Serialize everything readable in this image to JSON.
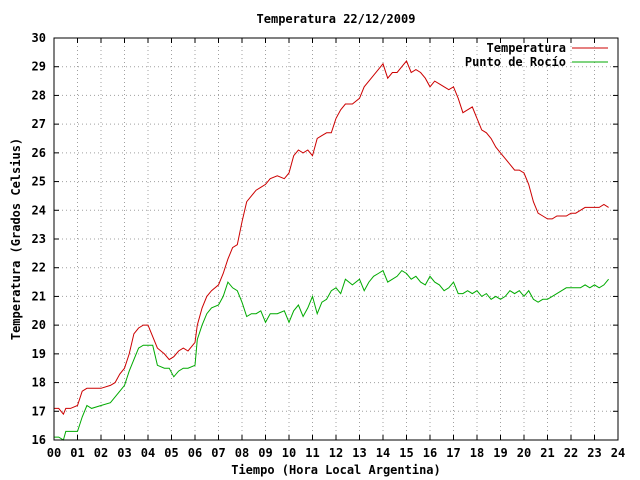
{
  "chart_data": {
    "type": "line",
    "title": "Temperatura 22/12/2009",
    "xlabel": "Tiempo (Hora Local Argentina)",
    "ylabel": "Temperatura (Grados Celsius)",
    "xlim": [
      0,
      24
    ],
    "ylim": [
      16,
      30
    ],
    "x_tick_values": [
      0,
      1,
      2,
      3,
      4,
      5,
      6,
      7,
      8,
      9,
      10,
      11,
      12,
      13,
      14,
      15,
      16,
      17,
      18,
      19,
      20,
      21,
      22,
      23,
      24
    ],
    "x_tick_labels": [
      "00",
      "01",
      "02",
      "03",
      "04",
      "05",
      "06",
      "07",
      "08",
      "09",
      "10",
      "11",
      "12",
      "13",
      "14",
      "15",
      "16",
      "17",
      "18",
      "19",
      "20",
      "21",
      "22",
      "23",
      "24"
    ],
    "y_ticks": [
      16,
      17,
      18,
      19,
      20,
      21,
      22,
      23,
      24,
      25,
      26,
      27,
      28,
      29,
      30
    ],
    "grid": true,
    "legend_position": "top-right",
    "series": [
      {
        "name": "Temperatura",
        "color": "#cc0000",
        "x": [
          0,
          0.2,
          0.4,
          0.5,
          0.7,
          1.0,
          1.2,
          1.4,
          1.6,
          2.0,
          2.4,
          2.6,
          2.8,
          3.0,
          3.2,
          3.4,
          3.6,
          3.8,
          4.0,
          4.2,
          4.4,
          4.7,
          4.9,
          5.1,
          5.3,
          5.5,
          5.7,
          6.0,
          6.1,
          6.3,
          6.5,
          6.7,
          7.0,
          7.2,
          7.4,
          7.6,
          7.8,
          8.0,
          8.2,
          8.4,
          8.6,
          8.8,
          9.0,
          9.2,
          9.5,
          9.8,
          10.0,
          10.2,
          10.4,
          10.6,
          10.8,
          11.0,
          11.2,
          11.4,
          11.6,
          11.8,
          12.0,
          12.2,
          12.4,
          12.7,
          13.0,
          13.2,
          13.4,
          13.6,
          13.8,
          14.0,
          14.2,
          14.4,
          14.6,
          14.8,
          15.0,
          15.2,
          15.4,
          15.6,
          15.8,
          16.0,
          16.2,
          16.4,
          16.6,
          16.8,
          17.0,
          17.2,
          17.4,
          17.6,
          17.8,
          18.0,
          18.2,
          18.4,
          18.6,
          18.8,
          19.0,
          19.2,
          19.4,
          19.6,
          19.8,
          20.0,
          20.2,
          20.4,
          20.6,
          20.8,
          21.0,
          21.2,
          21.4,
          21.6,
          21.8,
          22.0,
          22.2,
          22.4,
          22.6,
          22.8,
          23.0,
          23.2,
          23.4,
          23.6
        ],
        "y": [
          17.1,
          17.1,
          16.9,
          17.1,
          17.1,
          17.2,
          17.7,
          17.8,
          17.8,
          17.8,
          17.9,
          18.0,
          18.3,
          18.5,
          19.0,
          19.7,
          19.9,
          20.0,
          20.0,
          19.6,
          19.2,
          19.0,
          18.8,
          18.9,
          19.1,
          19.2,
          19.1,
          19.4,
          20.0,
          20.6,
          21.0,
          21.2,
          21.4,
          21.8,
          22.3,
          22.7,
          22.8,
          23.6,
          24.3,
          24.5,
          24.7,
          24.8,
          24.9,
          25.1,
          25.2,
          25.1,
          25.3,
          25.9,
          26.1,
          26.0,
          26.1,
          25.9,
          26.5,
          26.6,
          26.7,
          26.7,
          27.2,
          27.5,
          27.7,
          27.7,
          27.9,
          28.3,
          28.5,
          28.7,
          28.9,
          29.1,
          28.6,
          28.8,
          28.8,
          29.0,
          29.2,
          28.8,
          28.9,
          28.8,
          28.6,
          28.3,
          28.5,
          28.4,
          28.3,
          28.2,
          28.3,
          27.9,
          27.4,
          27.5,
          27.6,
          27.2,
          26.8,
          26.7,
          26.5,
          26.2,
          26.0,
          25.8,
          25.6,
          25.4,
          25.4,
          25.3,
          24.9,
          24.3,
          23.9,
          23.8,
          23.7,
          23.7,
          23.8,
          23.8,
          23.8,
          23.9,
          23.9,
          24.0,
          24.1,
          24.1,
          24.1,
          24.1,
          24.2,
          24.1
        ]
      },
      {
        "name": "Punto de Rocío",
        "color": "#00aa00",
        "x": [
          0,
          0.2,
          0.4,
          0.5,
          0.7,
          1.0,
          1.2,
          1.4,
          1.6,
          2.0,
          2.4,
          2.6,
          2.8,
          3.0,
          3.2,
          3.4,
          3.6,
          3.8,
          4.0,
          4.2,
          4.4,
          4.7,
          4.9,
          5.1,
          5.3,
          5.5,
          5.7,
          6.0,
          6.1,
          6.3,
          6.5,
          6.7,
          7.0,
          7.2,
          7.4,
          7.6,
          7.8,
          8.0,
          8.2,
          8.4,
          8.6,
          8.8,
          9.0,
          9.2,
          9.5,
          9.8,
          10.0,
          10.2,
          10.4,
          10.6,
          10.8,
          11.0,
          11.2,
          11.4,
          11.6,
          11.8,
          12.0,
          12.2,
          12.4,
          12.7,
          13.0,
          13.2,
          13.4,
          13.6,
          13.8,
          14.0,
          14.2,
          14.4,
          14.6,
          14.8,
          15.0,
          15.2,
          15.4,
          15.6,
          15.8,
          16.0,
          16.2,
          16.4,
          16.6,
          16.8,
          17.0,
          17.2,
          17.4,
          17.6,
          17.8,
          18.0,
          18.2,
          18.4,
          18.6,
          18.8,
          19.0,
          19.2,
          19.4,
          19.6,
          19.8,
          20.0,
          20.2,
          20.4,
          20.6,
          20.8,
          21.0,
          21.2,
          21.4,
          21.6,
          21.8,
          22.0,
          22.2,
          22.4,
          22.6,
          22.8,
          23.0,
          23.2,
          23.4,
          23.6
        ],
        "y": [
          16.1,
          16.1,
          16.0,
          16.3,
          16.3,
          16.3,
          16.8,
          17.2,
          17.1,
          17.2,
          17.3,
          17.5,
          17.7,
          17.9,
          18.4,
          18.8,
          19.2,
          19.3,
          19.3,
          19.3,
          18.6,
          18.5,
          18.5,
          18.2,
          18.4,
          18.5,
          18.5,
          18.6,
          19.5,
          20.0,
          20.4,
          20.6,
          20.7,
          21.0,
          21.5,
          21.3,
          21.2,
          20.8,
          20.3,
          20.4,
          20.4,
          20.5,
          20.1,
          20.4,
          20.4,
          20.5,
          20.1,
          20.5,
          20.7,
          20.3,
          20.6,
          21.0,
          20.4,
          20.8,
          20.9,
          21.2,
          21.3,
          21.1,
          21.6,
          21.4,
          21.6,
          21.2,
          21.5,
          21.7,
          21.8,
          21.9,
          21.5,
          21.6,
          21.7,
          21.9,
          21.8,
          21.6,
          21.7,
          21.5,
          21.4,
          21.7,
          21.5,
          21.4,
          21.2,
          21.3,
          21.5,
          21.1,
          21.1,
          21.2,
          21.1,
          21.2,
          21.0,
          21.1,
          20.9,
          21.0,
          20.9,
          21.0,
          21.2,
          21.1,
          21.2,
          21.0,
          21.2,
          20.9,
          20.8,
          20.9,
          20.9,
          21.0,
          21.1,
          21.2,
          21.3,
          21.3,
          21.3,
          21.3,
          21.4,
          21.3,
          21.4,
          21.3,
          21.4,
          21.6
        ]
      }
    ]
  }
}
